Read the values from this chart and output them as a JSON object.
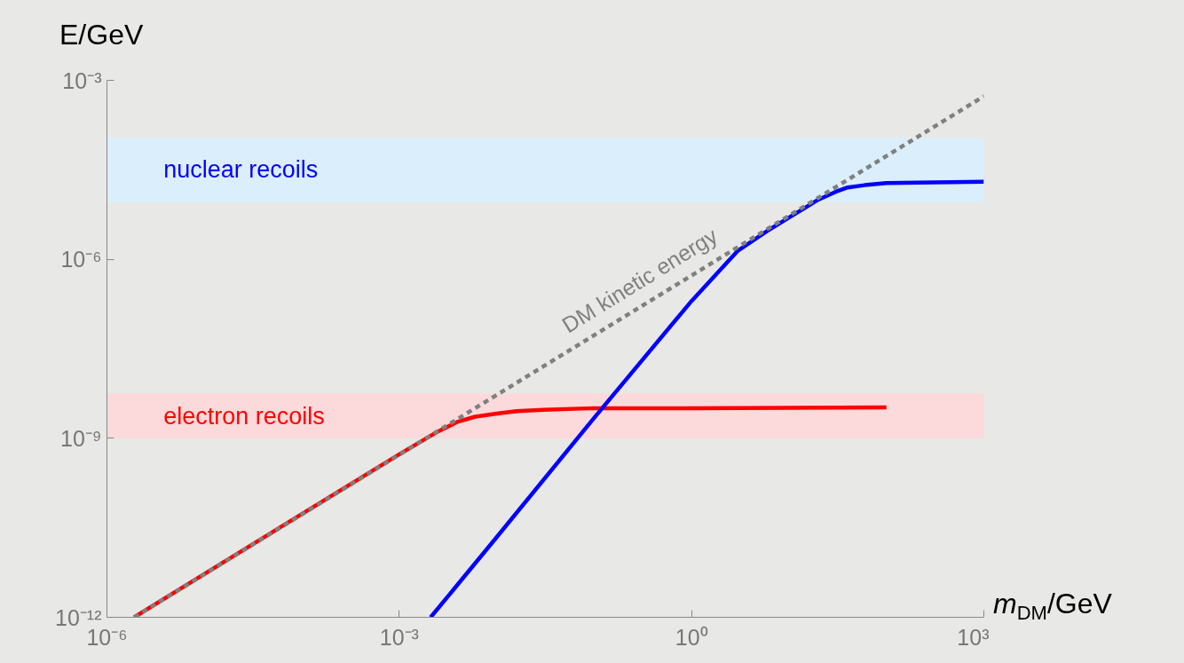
{
  "chart_data": {
    "type": "line",
    "xlabel": "m$_{DM}$/GeV",
    "ylabel": "E/GeV",
    "log": "xy",
    "xlim": [
      1e-06,
      1000
    ],
    "ylim": [
      1e-12,
      0.001
    ],
    "xticks": [
      {
        "value": 1e-06,
        "label": "10⁻⁶"
      },
      {
        "value": 0.001,
        "label": "10⁻³"
      },
      {
        "value": 1,
        "label": "10⁰"
      },
      {
        "value": 1000,
        "label": "10³"
      }
    ],
    "yticks": [
      {
        "value": 1e-12,
        "label": "10⁻¹²"
      },
      {
        "value": 1e-09,
        "label": "10⁻⁹"
      },
      {
        "value": 1e-06,
        "label": "10⁻⁶"
      },
      {
        "value": 0.001,
        "label": "10⁻³"
      }
    ],
    "bands": [
      {
        "axis": "y",
        "from": 9e-06,
        "to": 0.00011,
        "label": "nuclear recoils",
        "color": "#dbeefb"
      },
      {
        "axis": "y",
        "from": 1e-09,
        "to": 5.6e-09,
        "label": "electron recoils",
        "color": "#fcd9da"
      }
    ],
    "series": [
      {
        "color": "#ff0000",
        "line_style": "solid",
        "x": [
          1.9e-06,
          0.0001,
          0.001,
          0.0025,
          0.004,
          0.006,
          0.01,
          0.016,
          0.03,
          0.1,
          1,
          100
        ],
        "values": [
          1e-12,
          5.4e-11,
          5.4e-10,
          1.3e-09,
          1.9e-09,
          2.3e-09,
          2.6e-09,
          2.85e-09,
          3e-09,
          3.2e-09,
          3.2e-09,
          3.3e-09
        ]
      },
      {
        "color": "#0000ff",
        "line_style": "solid",
        "x": [
          0.0021,
          0.01,
          0.1,
          1,
          3,
          6,
          10,
          15,
          20,
          30,
          40,
          60,
          100,
          1000
        ],
        "values": [
          1e-12,
          2.2e-11,
          2.2e-09,
          2e-07,
          1.4e-06,
          3e-06,
          5e-06,
          7.5e-06,
          1e-05,
          1.35e-05,
          1.6e-05,
          1.75e-05,
          1.9e-05,
          2e-05
        ]
      },
      {
        "name": "DM kinetic energy",
        "color": "#808080",
        "line_style": "dashed",
        "x": [
          1.9e-06,
          1000
        ],
        "values": [
          1e-12,
          0.00054
        ]
      }
    ]
  }
}
